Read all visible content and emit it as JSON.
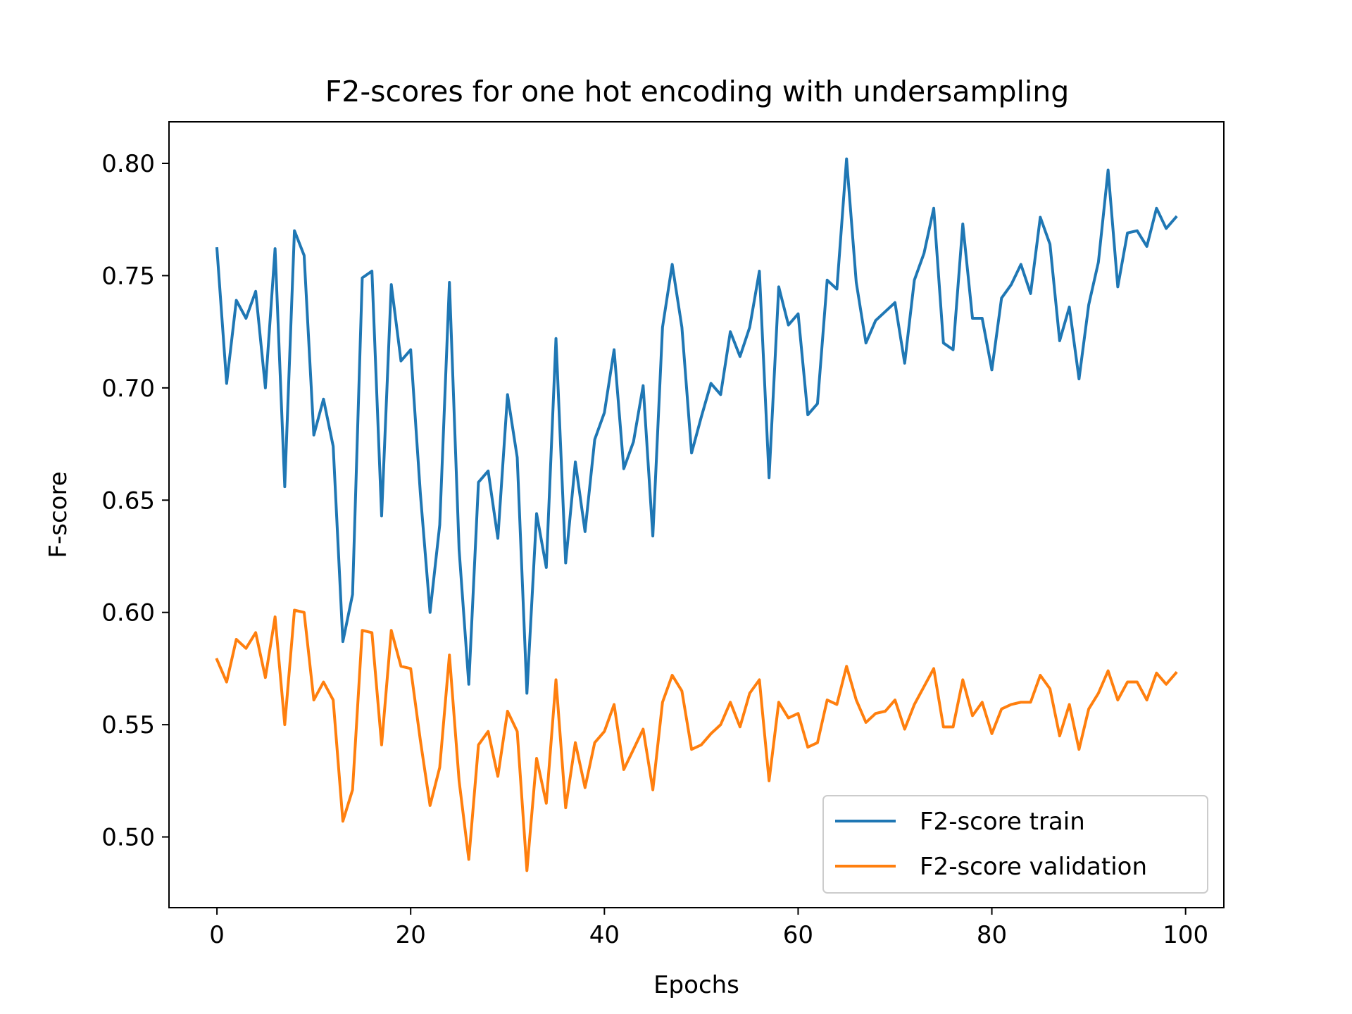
{
  "chart_data": {
    "type": "line",
    "title": "F2-scores for one hot encoding with undersampling",
    "xlabel": "Epochs",
    "ylabel": "F-score",
    "xlim": [
      -4.95,
      103.95
    ],
    "ylim": [
      0.4685,
      0.8185
    ],
    "xticks": [
      0,
      20,
      40,
      60,
      80,
      100
    ],
    "xtick_labels": [
      "0",
      "20",
      "40",
      "60",
      "80",
      "100"
    ],
    "yticks": [
      0.5,
      0.55,
      0.6,
      0.65,
      0.7,
      0.75,
      0.8
    ],
    "ytick_labels": [
      "0.50",
      "0.55",
      "0.60",
      "0.65",
      "0.70",
      "0.75",
      "0.80"
    ],
    "grid": false,
    "legend_position": "lower right",
    "x": [
      0,
      1,
      2,
      3,
      4,
      5,
      6,
      7,
      8,
      9,
      10,
      11,
      12,
      13,
      14,
      15,
      16,
      17,
      18,
      19,
      20,
      21,
      22,
      23,
      24,
      25,
      26,
      27,
      28,
      29,
      30,
      31,
      32,
      33,
      34,
      35,
      36,
      37,
      38,
      39,
      40,
      41,
      42,
      43,
      44,
      45,
      46,
      47,
      48,
      49,
      50,
      51,
      52,
      53,
      54,
      55,
      56,
      57,
      58,
      59,
      60,
      61,
      62,
      63,
      64,
      65,
      66,
      67,
      68,
      69,
      70,
      71,
      72,
      73,
      74,
      75,
      76,
      77,
      78,
      79,
      80,
      81,
      82,
      83,
      84,
      85,
      86,
      87,
      88,
      89,
      90,
      91,
      92,
      93,
      94,
      95,
      96,
      97,
      98,
      99
    ],
    "series": [
      {
        "name": "F2-score train",
        "color": "#1f77b4",
        "values": [
          0.762,
          0.702,
          0.739,
          0.731,
          0.743,
          0.7,
          0.762,
          0.656,
          0.77,
          0.759,
          0.679,
          0.695,
          0.674,
          0.587,
          0.608,
          0.749,
          0.752,
          0.643,
          0.746,
          0.712,
          0.717,
          0.653,
          0.6,
          0.639,
          0.747,
          0.628,
          0.568,
          0.658,
          0.663,
          0.633,
          0.697,
          0.669,
          0.564,
          0.644,
          0.62,
          0.722,
          0.622,
          0.667,
          0.636,
          0.677,
          0.689,
          0.717,
          0.664,
          0.676,
          0.701,
          0.634,
          0.727,
          0.755,
          0.727,
          0.671,
          0.687,
          0.702,
          0.697,
          0.725,
          0.714,
          0.727,
          0.752,
          0.66,
          0.745,
          0.728,
          0.733,
          0.688,
          0.693,
          0.748,
          0.744,
          0.802,
          0.747,
          0.72,
          0.73,
          0.734,
          0.738,
          0.711,
          0.748,
          0.76,
          0.78,
          0.72,
          0.717,
          0.773,
          0.731,
          0.731,
          0.708,
          0.74,
          0.746,
          0.755,
          0.742,
          0.776,
          0.764,
          0.721,
          0.736,
          0.704,
          0.737,
          0.756,
          0.797,
          0.745,
          0.769,
          0.77,
          0.763,
          0.78,
          0.771,
          0.776
        ]
      },
      {
        "name": "F2-score validation",
        "color": "#ff7f0e",
        "values": [
          0.579,
          0.569,
          0.588,
          0.584,
          0.591,
          0.571,
          0.598,
          0.55,
          0.601,
          0.6,
          0.561,
          0.569,
          0.561,
          0.507,
          0.521,
          0.592,
          0.591,
          0.541,
          0.592,
          0.576,
          0.575,
          0.543,
          0.514,
          0.531,
          0.581,
          0.525,
          0.49,
          0.541,
          0.547,
          0.527,
          0.556,
          0.547,
          0.485,
          0.535,
          0.515,
          0.57,
          0.513,
          0.542,
          0.522,
          0.542,
          0.547,
          0.559,
          0.53,
          0.539,
          0.548,
          0.521,
          0.56,
          0.572,
          0.565,
          0.539,
          0.541,
          0.546,
          0.55,
          0.56,
          0.549,
          0.564,
          0.57,
          0.525,
          0.56,
          0.553,
          0.555,
          0.54,
          0.542,
          0.561,
          0.559,
          0.576,
          0.561,
          0.551,
          0.555,
          0.556,
          0.561,
          0.548,
          0.559,
          0.567,
          0.575,
          0.549,
          0.549,
          0.57,
          0.554,
          0.56,
          0.546,
          0.557,
          0.559,
          0.56,
          0.56,
          0.572,
          0.566,
          0.545,
          0.559,
          0.539,
          0.557,
          0.564,
          0.574,
          0.561,
          0.569,
          0.569,
          0.561,
          0.573,
          0.568,
          0.573
        ]
      }
    ]
  }
}
